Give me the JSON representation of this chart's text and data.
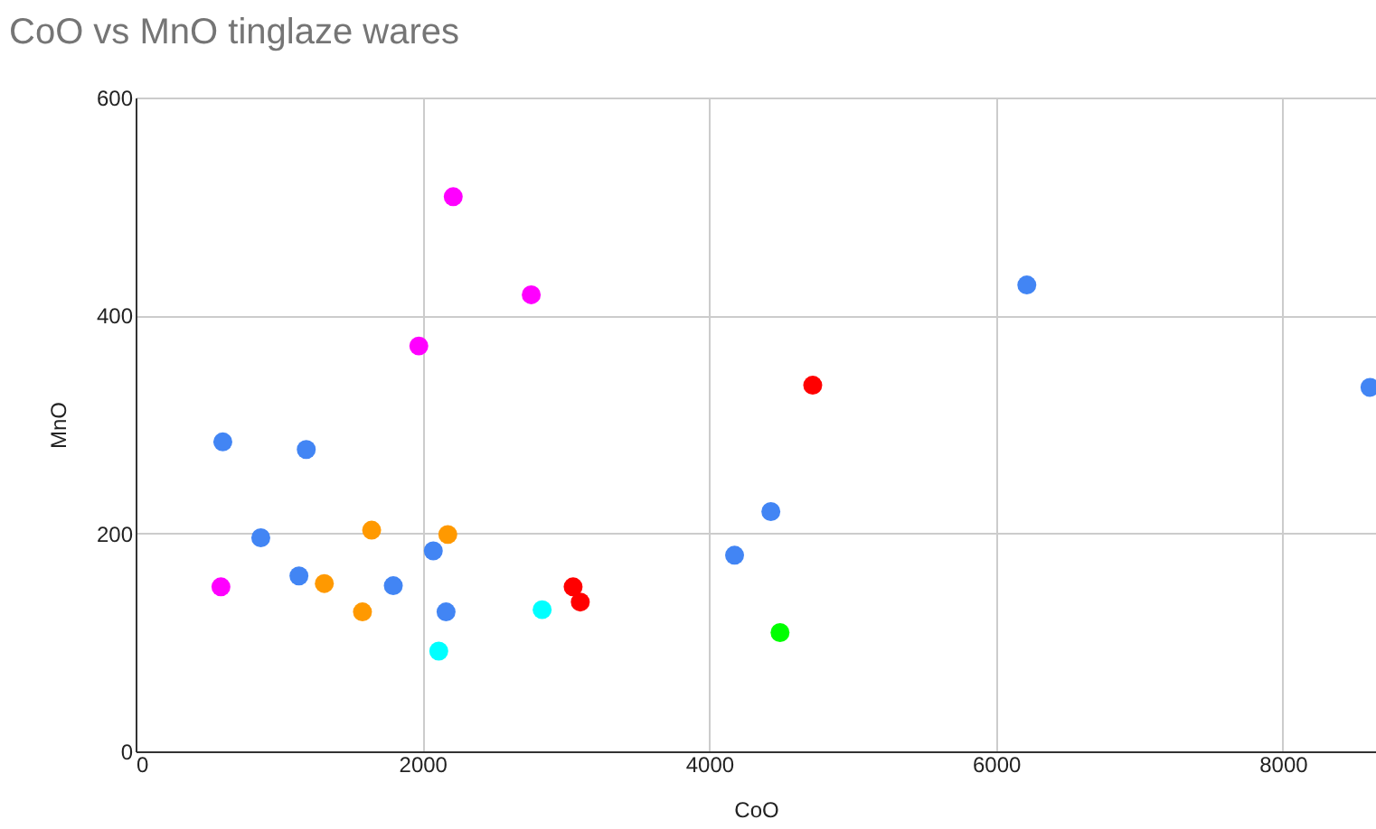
{
  "chart_data": {
    "type": "scatter",
    "title": "CoO vs MnO tinglaze wares",
    "xlabel": "CoO",
    "ylabel": "MnO",
    "xlim": [
      0,
      8650
    ],
    "xticks": [
      0,
      2000,
      4000,
      6000,
      8000
    ],
    "ylim": [
      0,
      600
    ],
    "yticks": [
      0,
      200,
      400,
      600
    ],
    "grid": true,
    "legend": false,
    "marker": "circle",
    "x": [
      608,
      1190,
      873,
      1139,
      1797,
      2076,
      2165,
      4177,
      4430,
      6215,
      8608,
      595,
      1975,
      2215,
      2759,
      1316,
      1646,
      1582,
      2177,
      2114,
      2835,
      3051,
      3101,
      4722,
      4494
    ],
    "values": [
      284,
      277,
      196,
      161,
      152,
      184,
      128,
      180,
      220,
      428,
      334,
      151,
      372,
      509,
      419,
      154,
      203,
      128,
      199,
      92,
      130,
      151,
      137,
      336,
      109
    ],
    "colors": [
      "#4285f4",
      "#4285f4",
      "#4285f4",
      "#4285f4",
      "#4285f4",
      "#4285f4",
      "#4285f4",
      "#4285f4",
      "#4285f4",
      "#4285f4",
      "#4285f4",
      "#ff00ff",
      "#ff00ff",
      "#ff00ff",
      "#ff00ff",
      "#ff9900",
      "#ff9900",
      "#ff9900",
      "#ff9900",
      "#00ffff",
      "#00ffff",
      "#ff0000",
      "#ff0000",
      "#ff0000",
      "#00ff00"
    ]
  }
}
